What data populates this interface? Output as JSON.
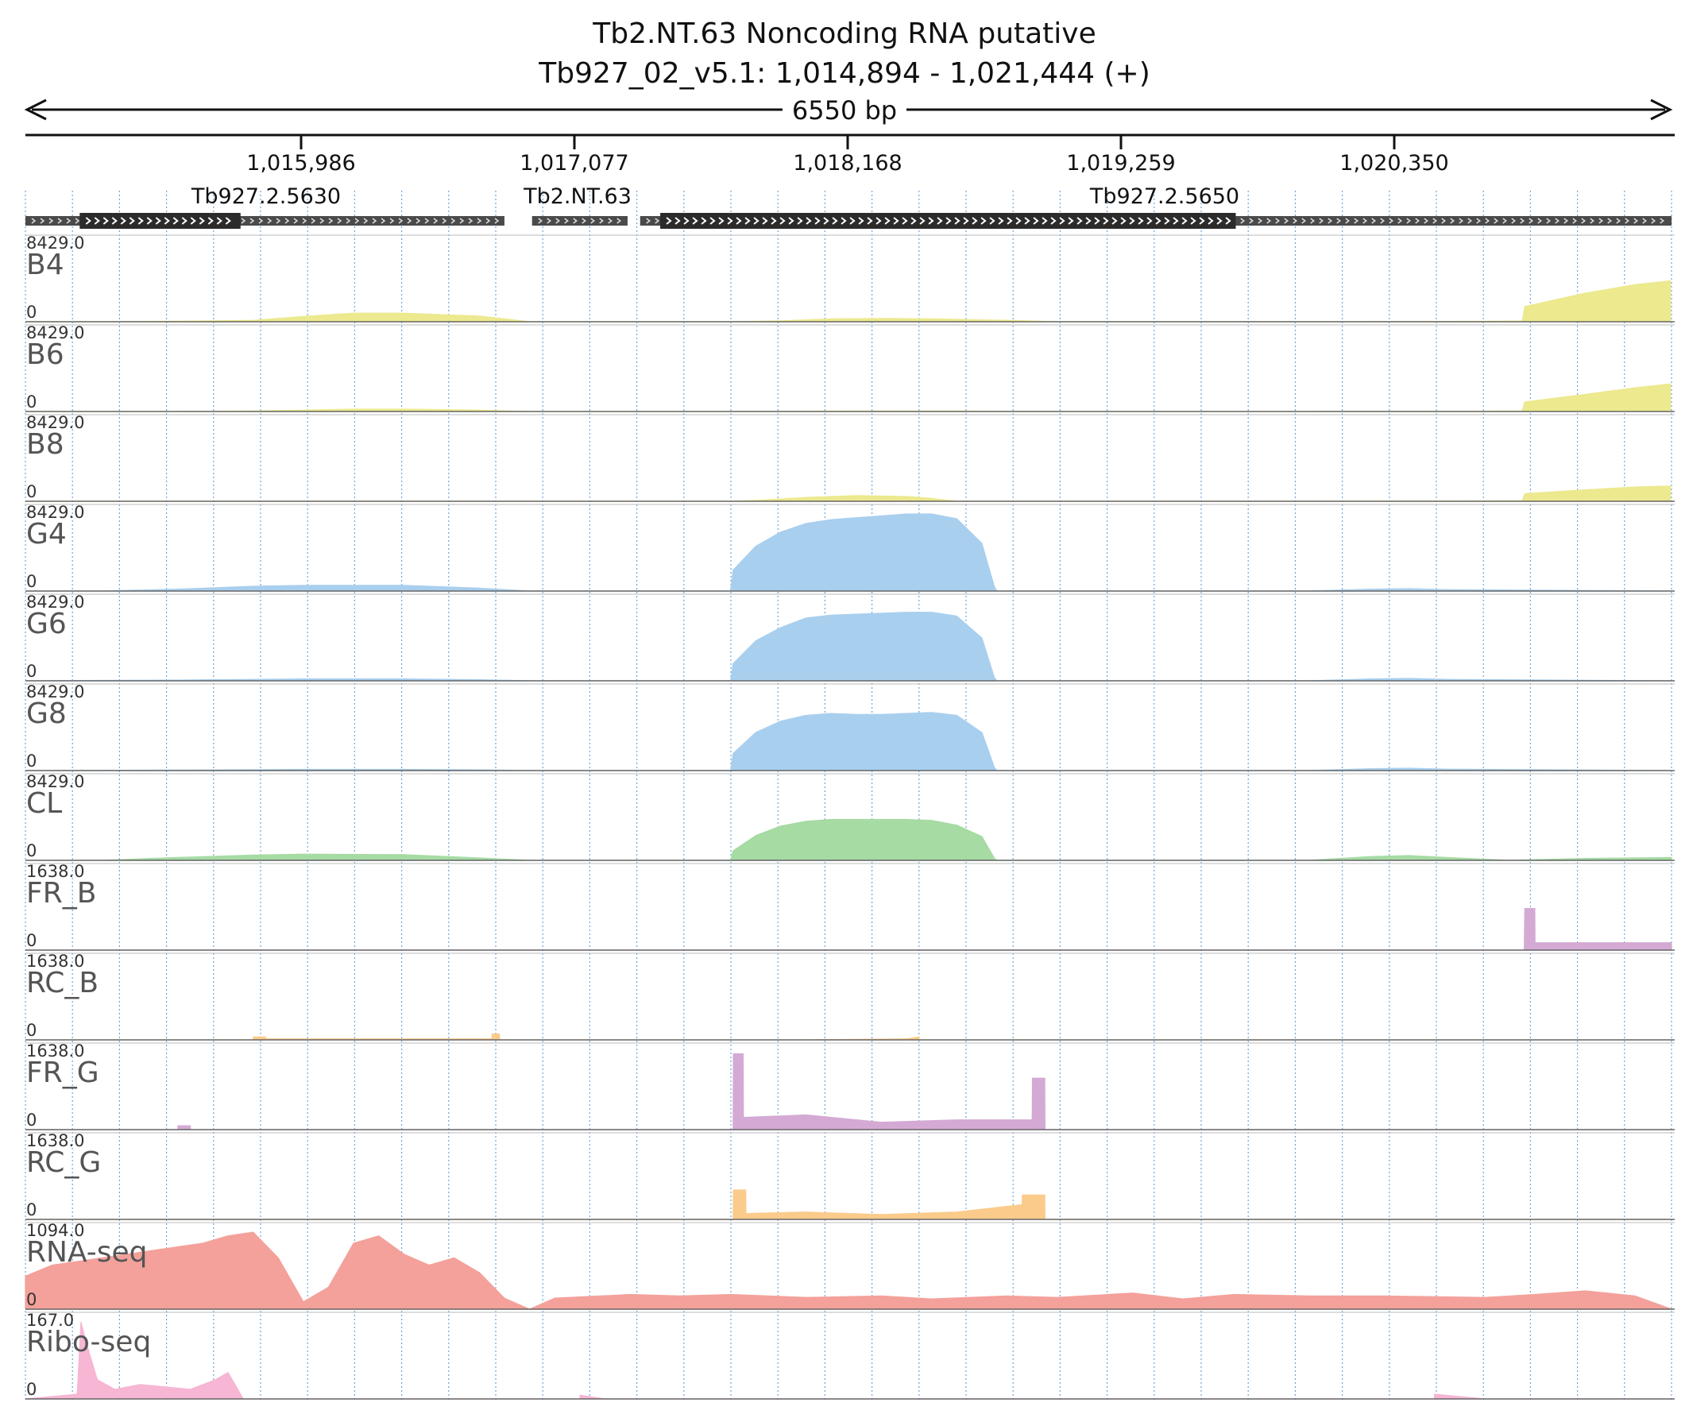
{
  "title": "Tb2.NT.63  Noncoding RNA  putative",
  "region": "Tb927_02_v5.1: 1,014,894 - 1,021,444 (+)",
  "length_label": "6550 bp",
  "ticks": [
    "1,015,986",
    "1,017,077",
    "1,018,168",
    "1,019,259",
    "1,020,350"
  ],
  "genes": [
    {
      "name": "Tb927.2.5630",
      "start": 1014894,
      "end": 1016800,
      "cds_start": 1015110,
      "cds_end": 1015750
    },
    {
      "name": "Tb2.NT.63",
      "start": 1016910,
      "end": 1017290,
      "cds_start": null,
      "cds_end": null
    },
    {
      "name": "Tb927.2.5650",
      "start": 1017340,
      "end": 1021444,
      "cds_start": 1017420,
      "cds_end": 1019710
    }
  ],
  "colors": {
    "bloodstream": "#ece98f",
    "procyclic": "#a9cfee",
    "cl": "#a6dba4",
    "fr": "#d4aad4",
    "rc": "#fbcb8c",
    "rnaseq": "#f4a19b",
    "riboseq": "#f6b6d4",
    "gene": "#2b2b2b"
  },
  "chart_data": {
    "type": "area",
    "xlim": [
      1014894,
      1021444
    ],
    "tracks": [
      {
        "name": "B4",
        "max_label": "8429.0",
        "min_label": "0",
        "ymax": 8429,
        "color": "#ece98f",
        "x": [
          1014894,
          1015200,
          1015500,
          1015800,
          1016000,
          1016200,
          1016400,
          1016700,
          1016900,
          1017100,
          1017400,
          1017700,
          1017900,
          1018100,
          1018300,
          1018500,
          1018800,
          1019000,
          1019500,
          1020000,
          1020400,
          1020700,
          1020850,
          1020860,
          1021100,
          1021300,
          1021440
        ],
        "y": [
          0,
          0,
          50,
          150,
          550,
          900,
          900,
          600,
          0,
          0,
          0,
          0,
          100,
          300,
          350,
          300,
          150,
          0,
          0,
          0,
          20,
          40,
          80,
          1600,
          3000,
          3900,
          4300
        ]
      },
      {
        "name": "B6",
        "max_label": "8429.0",
        "min_label": "0",
        "ymax": 8429,
        "color": "#ece98f",
        "x": [
          1014894,
          1015500,
          1015800,
          1016000,
          1016200,
          1016400,
          1016700,
          1016900,
          1017700,
          1018000,
          1018300,
          1018600,
          1019000,
          1020000,
          1020400,
          1020700,
          1020850,
          1020860,
          1021100,
          1021300,
          1021440
        ],
        "y": [
          0,
          0,
          50,
          150,
          250,
          250,
          150,
          0,
          0,
          30,
          50,
          40,
          0,
          0,
          20,
          30,
          60,
          1000,
          1800,
          2500,
          2900
        ]
      },
      {
        "name": "B8",
        "max_label": "8429.0",
        "min_label": "0",
        "ymax": 8429,
        "color": "#ece98f",
        "x": [
          1014894,
          1017700,
          1017800,
          1018000,
          1018200,
          1018400,
          1018500,
          1018600,
          1019000,
          1020000,
          1020400,
          1020700,
          1020850,
          1020860,
          1021100,
          1021300,
          1021440
        ],
        "y": [
          0,
          0,
          100,
          400,
          600,
          500,
          300,
          0,
          0,
          0,
          20,
          30,
          60,
          800,
          1200,
          1500,
          1600
        ]
      },
      {
        "name": "G4",
        "max_label": "8429.0",
        "min_label": "0",
        "ymax": 8429,
        "color": "#a9cfee",
        "x": [
          1014894,
          1015200,
          1015500,
          1015800,
          1016000,
          1016400,
          1016700,
          1016900,
          1017700,
          1017710,
          1017800,
          1017900,
          1018000,
          1018100,
          1018200,
          1018300,
          1018400,
          1018500,
          1018600,
          1018700,
          1018750,
          1018760,
          1019000,
          1020000,
          1020250,
          1020400,
          1020550,
          1021444
        ],
        "y": [
          0,
          0,
          200,
          500,
          600,
          600,
          300,
          0,
          0,
          2200,
          4700,
          6200,
          7100,
          7500,
          7700,
          7900,
          8100,
          8100,
          7600,
          5000,
          400,
          0,
          0,
          0,
          200,
          250,
          150,
          0
        ]
      },
      {
        "name": "G6",
        "max_label": "8429.0",
        "min_label": "0",
        "ymax": 8429,
        "color": "#a9cfee",
        "x": [
          1014894,
          1015500,
          1015800,
          1016000,
          1016400,
          1016700,
          1016900,
          1017700,
          1017710,
          1017800,
          1017900,
          1018000,
          1018100,
          1018200,
          1018300,
          1018400,
          1018500,
          1018600,
          1018700,
          1018750,
          1018760,
          1019000,
          1020000,
          1020250,
          1020400,
          1020550,
          1021444
        ],
        "y": [
          0,
          80,
          150,
          200,
          200,
          120,
          0,
          0,
          1800,
          4200,
          5600,
          6600,
          6900,
          7000,
          7100,
          7200,
          7200,
          6800,
          4500,
          300,
          0,
          0,
          0,
          200,
          250,
          150,
          0
        ]
      },
      {
        "name": "G8",
        "max_label": "8429.0",
        "min_label": "0",
        "ymax": 8429,
        "color": "#a9cfee",
        "x": [
          1014894,
          1015500,
          1015800,
          1016000,
          1016400,
          1016700,
          1016900,
          1017700,
          1017710,
          1017800,
          1017900,
          1018000,
          1018100,
          1018200,
          1018300,
          1018400,
          1018500,
          1018600,
          1018700,
          1018750,
          1018760,
          1019000,
          1020000,
          1020250,
          1020400,
          1020550,
          1021444
        ],
        "y": [
          0,
          50,
          100,
          130,
          130,
          80,
          0,
          0,
          1800,
          4000,
          5200,
          5800,
          6000,
          5900,
          5900,
          6000,
          6100,
          5800,
          4000,
          300,
          0,
          0,
          0,
          200,
          250,
          150,
          0
        ]
      },
      {
        "name": "CL",
        "max_label": "8429.0",
        "min_label": "0",
        "ymax": 8429,
        "color": "#a6dba4",
        "x": [
          1014894,
          1015200,
          1015500,
          1015800,
          1016000,
          1016400,
          1016700,
          1016900,
          1017700,
          1017710,
          1017800,
          1017900,
          1018000,
          1018100,
          1018200,
          1018300,
          1018400,
          1018500,
          1018600,
          1018700,
          1018750,
          1018760,
          1019000,
          1020000,
          1020250,
          1020400,
          1020550,
          1020800,
          1021100,
          1021444
        ],
        "y": [
          0,
          0,
          300,
          550,
          650,
          600,
          250,
          0,
          0,
          1000,
          2600,
          3600,
          4100,
          4300,
          4300,
          4300,
          4300,
          4200,
          3700,
          2500,
          200,
          0,
          0,
          0,
          400,
          500,
          300,
          0,
          200,
          300
        ]
      },
      {
        "name": "FR_B",
        "max_label": "1638.0",
        "min_label": "0",
        "ymax": 1638,
        "color": "#d4aad4",
        "x": [
          1014894,
          1020858,
          1020860,
          1020900,
          1020901,
          1021444
        ],
        "y": [
          0,
          0,
          850,
          850,
          150,
          150
        ]
      },
      {
        "name": "RC_B",
        "max_label": "1638.0",
        "min_label": "0",
        "ymax": 1638,
        "color": "#fbcb8c",
        "x": [
          1014894,
          1015800,
          1015801,
          1015850,
          1015851,
          1016750,
          1016751,
          1016780,
          1016781,
          1018000,
          1018400,
          1018401,
          1018450,
          1018451,
          1021444
        ],
        "y": [
          0,
          0,
          60,
          60,
          20,
          20,
          120,
          120,
          0,
          0,
          20,
          20,
          60,
          0,
          0
        ]
      },
      {
        "name": "FR_G",
        "max_label": "1638.0",
        "min_label": "0",
        "ymax": 1638,
        "color": "#d4aad4",
        "x": [
          1014894,
          1015500,
          1015501,
          1015550,
          1015551,
          1017710,
          1017711,
          1017750,
          1017751,
          1018000,
          1018300,
          1018600,
          1018900,
          1018901,
          1018950,
          1018951,
          1021444
        ],
        "y": [
          0,
          0,
          80,
          80,
          0,
          0,
          1550,
          1550,
          250,
          300,
          150,
          200,
          200,
          1050,
          1050,
          0,
          0
        ]
      },
      {
        "name": "RC_G",
        "max_label": "1638.0",
        "min_label": "0",
        "ymax": 1638,
        "color": "#fbcb8c",
        "x": [
          1014894,
          1017710,
          1017711,
          1017760,
          1017761,
          1018000,
          1018300,
          1018600,
          1018860,
          1018861,
          1018950,
          1018951,
          1021444
        ],
        "y": [
          0,
          0,
          600,
          600,
          120,
          150,
          100,
          150,
          300,
          500,
          500,
          0,
          0
        ]
      },
      {
        "name": "RNA-seq",
        "max_label": "1094.0",
        "min_label": "0",
        "ymax": 1094,
        "color": "#f4a19b",
        "x": [
          1014894,
          1015000,
          1015200,
          1015400,
          1015600,
          1015700,
          1015800,
          1015900,
          1016000,
          1016100,
          1016200,
          1016300,
          1016400,
          1016500,
          1016600,
          1016700,
          1016800,
          1016900,
          1017000,
          1017300,
          1017500,
          1017700,
          1018000,
          1018300,
          1018500,
          1018800,
          1019000,
          1019300,
          1019500,
          1019700,
          1020000,
          1020300,
          1020700,
          1020900,
          1021100,
          1021300,
          1021444
        ],
        "y": [
          450,
          600,
          700,
          800,
          900,
          1000,
          1050,
          700,
          100,
          300,
          900,
          1000,
          750,
          600,
          700,
          500,
          150,
          0,
          150,
          200,
          180,
          200,
          160,
          180,
          140,
          180,
          160,
          220,
          140,
          200,
          180,
          180,
          160,
          200,
          250,
          180,
          0
        ]
      },
      {
        "name": "Ribo-seq",
        "max_label": "167.0",
        "min_label": "0",
        "ymax": 167,
        "color": "#f6b6d4",
        "x": [
          1014894,
          1015000,
          1015100,
          1015115,
          1015140,
          1015180,
          1015250,
          1015350,
          1015450,
          1015550,
          1015650,
          1015700,
          1015750,
          1015760,
          1017000,
          1017100,
          1017101,
          1017200,
          1020500,
          1020501,
          1020700,
          1021444
        ],
        "y": [
          0,
          5,
          10,
          160,
          110,
          40,
          20,
          30,
          25,
          20,
          40,
          55,
          10,
          0,
          0,
          0,
          8,
          0,
          0,
          10,
          0,
          0
        ]
      }
    ]
  }
}
